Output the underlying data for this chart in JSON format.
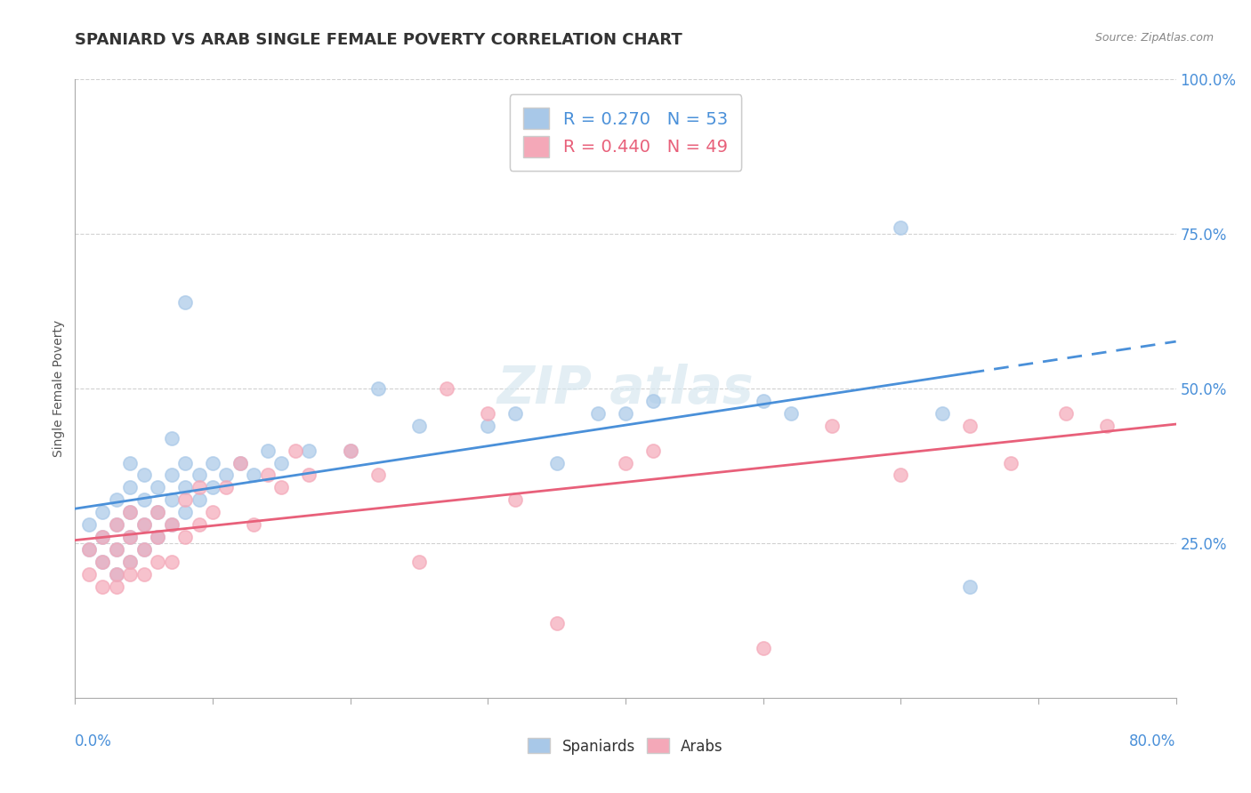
{
  "title": "SPANIARD VS ARAB SINGLE FEMALE POVERTY CORRELATION CHART",
  "source": "Source: ZipAtlas.com",
  "ylabel": "Single Female Poverty",
  "spaniards_R": 0.27,
  "spaniards_N": 53,
  "arabs_R": 0.44,
  "arabs_N": 49,
  "spaniard_color": "#a8c8e8",
  "arab_color": "#f4a8b8",
  "spaniard_line_color": "#4a90d9",
  "arab_line_color": "#e8607a",
  "background_color": "#ffffff",
  "xlim": [
    0.0,
    0.8
  ],
  "ylim": [
    0.0,
    1.0
  ],
  "spaniards_x": [
    0.01,
    0.01,
    0.02,
    0.02,
    0.02,
    0.03,
    0.03,
    0.03,
    0.03,
    0.04,
    0.04,
    0.04,
    0.04,
    0.04,
    0.05,
    0.05,
    0.05,
    0.05,
    0.06,
    0.06,
    0.06,
    0.07,
    0.07,
    0.07,
    0.07,
    0.08,
    0.08,
    0.08,
    0.08,
    0.09,
    0.09,
    0.1,
    0.1,
    0.11,
    0.12,
    0.13,
    0.14,
    0.15,
    0.17,
    0.2,
    0.22,
    0.25,
    0.3,
    0.32,
    0.35,
    0.38,
    0.4,
    0.42,
    0.5,
    0.52,
    0.6,
    0.63,
    0.65
  ],
  "spaniards_y": [
    0.24,
    0.28,
    0.22,
    0.26,
    0.3,
    0.2,
    0.24,
    0.28,
    0.32,
    0.22,
    0.26,
    0.3,
    0.34,
    0.38,
    0.24,
    0.28,
    0.32,
    0.36,
    0.26,
    0.3,
    0.34,
    0.28,
    0.32,
    0.36,
    0.42,
    0.3,
    0.34,
    0.38,
    0.64,
    0.32,
    0.36,
    0.34,
    0.38,
    0.36,
    0.38,
    0.36,
    0.4,
    0.38,
    0.4,
    0.4,
    0.5,
    0.44,
    0.44,
    0.46,
    0.38,
    0.46,
    0.46,
    0.48,
    0.48,
    0.46,
    0.76,
    0.46,
    0.18
  ],
  "arabs_x": [
    0.01,
    0.01,
    0.02,
    0.02,
    0.02,
    0.03,
    0.03,
    0.03,
    0.03,
    0.04,
    0.04,
    0.04,
    0.04,
    0.05,
    0.05,
    0.05,
    0.06,
    0.06,
    0.06,
    0.07,
    0.07,
    0.08,
    0.08,
    0.09,
    0.09,
    0.1,
    0.11,
    0.12,
    0.13,
    0.14,
    0.15,
    0.16,
    0.17,
    0.2,
    0.22,
    0.25,
    0.27,
    0.3,
    0.32,
    0.35,
    0.4,
    0.42,
    0.5,
    0.55,
    0.6,
    0.65,
    0.68,
    0.72,
    0.75
  ],
  "arabs_y": [
    0.2,
    0.24,
    0.18,
    0.22,
    0.26,
    0.18,
    0.2,
    0.24,
    0.28,
    0.2,
    0.22,
    0.26,
    0.3,
    0.2,
    0.24,
    0.28,
    0.22,
    0.26,
    0.3,
    0.22,
    0.28,
    0.26,
    0.32,
    0.28,
    0.34,
    0.3,
    0.34,
    0.38,
    0.28,
    0.36,
    0.34,
    0.4,
    0.36,
    0.4,
    0.36,
    0.22,
    0.5,
    0.46,
    0.32,
    0.12,
    0.38,
    0.4,
    0.08,
    0.44,
    0.36,
    0.44,
    0.38,
    0.46,
    0.44
  ]
}
